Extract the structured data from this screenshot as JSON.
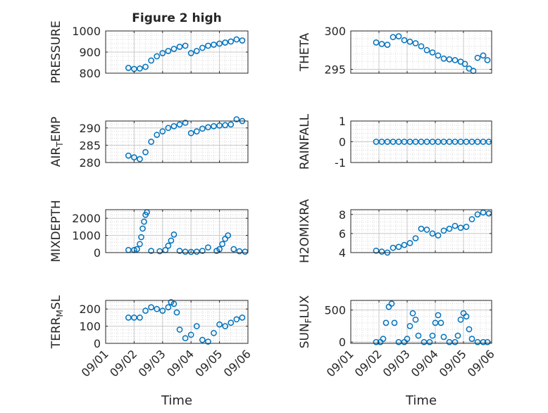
{
  "figure": {
    "title": "Figure 2 high"
  },
  "x_ticks": [
    "09/01",
    "09/02",
    "09/03",
    "09/04",
    "09/05",
    "09/06"
  ],
  "x_label": "Time",
  "series_color": "#0072BD",
  "chart_data": [
    {
      "type": "scatter",
      "ylabel": "PRESSURE",
      "ylim": [
        800,
        1000
      ],
      "yticks": [
        "800",
        "900",
        "1000"
      ],
      "grid": true,
      "title": "Figure 2 high",
      "x": [
        1.8,
        2.0,
        2.2,
        2.4,
        2.6,
        2.8,
        3.0,
        3.2,
        3.4,
        3.6,
        3.8,
        4.0,
        4.2,
        4.4,
        4.6,
        4.8,
        5.0,
        5.2,
        5.4,
        5.6,
        5.8
      ],
      "y": [
        825,
        820,
        822,
        830,
        860,
        880,
        895,
        905,
        915,
        925,
        930,
        895,
        905,
        920,
        930,
        935,
        940,
        945,
        950,
        960,
        955
      ]
    },
    {
      "type": "scatter",
      "ylabel": "THETA",
      "ylim": [
        294.5,
        300
      ],
      "yticks": [
        "295",
        "300"
      ],
      "grid": true,
      "x": [
        1.9,
        2.1,
        2.3,
        2.5,
        2.7,
        2.9,
        3.1,
        3.3,
        3.5,
        3.7,
        3.9,
        4.1,
        4.3,
        4.5,
        4.7,
        4.9,
        5.05,
        5.2,
        5.35,
        5.5,
        5.7,
        5.85
      ],
      "y": [
        298.5,
        298.3,
        298.2,
        299.2,
        299.3,
        298.8,
        298.6,
        298.4,
        298.0,
        297.5,
        297.2,
        296.8,
        296.4,
        296.3,
        296.2,
        296.0,
        295.7,
        295.1,
        294.8,
        296.5,
        296.8,
        296.2
      ]
    },
    {
      "type": "scatter",
      "ylabel": "AIR_TEMP",
      "ylim": [
        280,
        292
      ],
      "yticks": [
        "280",
        "285",
        "290"
      ],
      "grid": true,
      "x": [
        1.8,
        2.0,
        2.2,
        2.4,
        2.6,
        2.8,
        3.0,
        3.2,
        3.4,
        3.6,
        3.8,
        4.0,
        4.2,
        4.4,
        4.6,
        4.8,
        5.0,
        5.2,
        5.4,
        5.6,
        5.8
      ],
      "y": [
        282,
        281.5,
        281,
        283,
        286,
        288,
        289,
        290,
        290.5,
        291,
        291.5,
        288.5,
        289,
        289.8,
        290.2,
        290.5,
        290.7,
        290.8,
        291,
        292.5,
        292
      ]
    },
    {
      "type": "scatter",
      "ylabel": "RAINFALL",
      "ylim": [
        -1,
        1
      ],
      "yticks": [
        "-1",
        "0",
        "1"
      ],
      "grid": true,
      "x": [
        1.9,
        2.1,
        2.3,
        2.5,
        2.7,
        2.9,
        3.1,
        3.3,
        3.5,
        3.7,
        3.9,
        4.1,
        4.3,
        4.5,
        4.7,
        4.9,
        5.1,
        5.3,
        5.5,
        5.7,
        5.9
      ],
      "y": [
        0,
        0,
        0,
        0,
        0,
        0,
        0,
        0,
        0,
        0,
        0,
        0,
        0,
        0,
        0,
        0,
        0,
        0,
        0,
        0,
        0
      ]
    },
    {
      "type": "scatter",
      "ylabel": "MIXDEPTH",
      "ylim": [
        0,
        2500
      ],
      "yticks": [
        "0",
        "1000",
        "2000"
      ],
      "grid": true,
      "x": [
        1.8,
        2.0,
        2.1,
        2.2,
        2.25,
        2.3,
        2.35,
        2.4,
        2.45,
        2.6,
        2.9,
        3.1,
        3.2,
        3.3,
        3.4,
        3.6,
        3.8,
        4.0,
        4.2,
        4.4,
        4.6,
        4.9,
        5.0,
        5.1,
        5.2,
        5.3,
        5.5,
        5.7,
        5.9
      ],
      "y": [
        150,
        150,
        200,
        500,
        900,
        1400,
        1800,
        2200,
        2350,
        100,
        80,
        150,
        400,
        700,
        1050,
        100,
        50,
        40,
        50,
        100,
        300,
        100,
        200,
        500,
        800,
        1000,
        200,
        80,
        50
      ]
    },
    {
      "type": "scatter",
      "ylabel": "H2OMIXRA",
      "ylim": [
        4,
        8.5
      ],
      "yticks": [
        "4",
        "6",
        "8"
      ],
      "grid": true,
      "x": [
        1.9,
        2.1,
        2.3,
        2.5,
        2.7,
        2.9,
        3.1,
        3.3,
        3.5,
        3.7,
        3.9,
        4.1,
        4.3,
        4.5,
        4.7,
        4.9,
        5.1,
        5.3,
        5.5,
        5.7,
        5.9
      ],
      "y": [
        4.2,
        4.1,
        4.0,
        4.5,
        4.6,
        4.8,
        5.0,
        5.5,
        6.5,
        6.4,
        6.0,
        5.8,
        6.3,
        6.5,
        6.8,
        6.6,
        6.7,
        7.5,
        8.0,
        8.2,
        8.1
      ]
    },
    {
      "type": "scatter",
      "ylabel": "TERR_MSL",
      "ylim": [
        0,
        250
      ],
      "yticks": [
        "0",
        "100",
        "200"
      ],
      "grid": true,
      "x": [
        1.8,
        2.0,
        2.2,
        2.4,
        2.6,
        2.8,
        3.0,
        3.2,
        3.3,
        3.4,
        3.5,
        3.6,
        3.8,
        4.0,
        4.2,
        4.4,
        4.6,
        4.8,
        5.0,
        5.2,
        5.4,
        5.6,
        5.8
      ],
      "y": [
        150,
        150,
        150,
        190,
        210,
        200,
        190,
        210,
        240,
        230,
        180,
        80,
        30,
        50,
        100,
        20,
        10,
        60,
        110,
        100,
        120,
        140,
        150
      ]
    },
    {
      "type": "scatter",
      "ylabel": "SUN_FLUX",
      "ylim": [
        -20,
        650
      ],
      "yticks": [
        "0",
        "500"
      ],
      "grid": true,
      "x": [
        1.9,
        2.05,
        2.15,
        2.25,
        2.35,
        2.45,
        2.55,
        2.7,
        2.9,
        3.0,
        3.1,
        3.2,
        3.3,
        3.4,
        3.6,
        3.8,
        3.9,
        4.0,
        4.1,
        4.2,
        4.3,
        4.5,
        4.7,
        4.8,
        4.9,
        5.0,
        5.1,
        5.2,
        5.3,
        5.5,
        5.7,
        5.85
      ],
      "y": [
        0,
        0,
        50,
        300,
        550,
        600,
        300,
        0,
        0,
        50,
        250,
        450,
        350,
        100,
        0,
        0,
        100,
        300,
        420,
        300,
        80,
        0,
        0,
        100,
        350,
        450,
        400,
        200,
        50,
        0,
        0,
        0
      ]
    }
  ]
}
